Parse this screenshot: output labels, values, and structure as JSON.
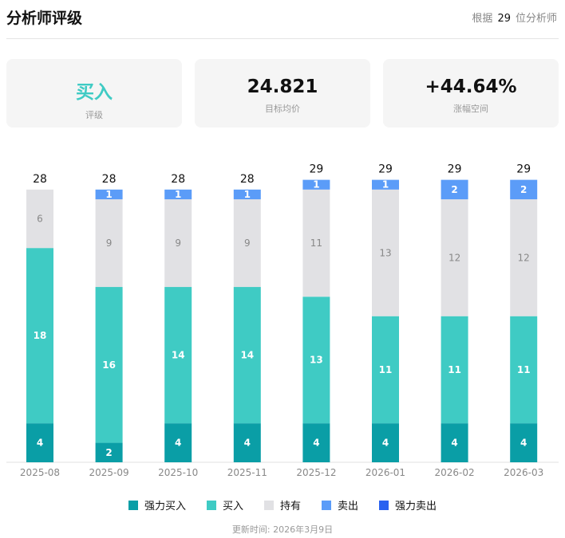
{
  "header": {
    "title": "分析师评级",
    "basis_prefix": "根据",
    "analyst_count": "29",
    "basis_suffix": "位分析师"
  },
  "cards": [
    {
      "value": "买入",
      "label": "评级",
      "color": "#3fcbc4"
    },
    {
      "value": "24.821",
      "label": "目标均价"
    },
    {
      "value": "+44.64%",
      "label": "涨幅空间"
    }
  ],
  "chart_data": {
    "type": "bar",
    "stacked": true,
    "categories": [
      "2025-08",
      "2025-09",
      "2025-10",
      "2025-11",
      "2025-12",
      "2026-01",
      "2026-02",
      "2026-03"
    ],
    "series": [
      {
        "name": "强力买入",
        "color": "#0a9ea6",
        "values": [
          4,
          2,
          4,
          4,
          4,
          4,
          4,
          4
        ]
      },
      {
        "name": "买入",
        "color": "#3fcbc4",
        "values": [
          18,
          16,
          14,
          14,
          13,
          11,
          11,
          11
        ]
      },
      {
        "name": "持有",
        "color": "#e1e1e4",
        "values": [
          6,
          9,
          9,
          9,
          11,
          13,
          12,
          12
        ]
      },
      {
        "name": "卖出",
        "color": "#5b9cf8",
        "values": [
          0,
          1,
          1,
          1,
          1,
          1,
          2,
          2
        ]
      },
      {
        "name": "强力卖出",
        "color": "#2a62f0",
        "values": [
          0,
          0,
          0,
          0,
          0,
          0,
          0,
          0
        ]
      }
    ],
    "totals": [
      28,
      28,
      28,
      28,
      29,
      29,
      29,
      29
    ],
    "legend": "bottom",
    "grid": false
  },
  "footer": {
    "updated": "更新时间: 2026年3月9日"
  }
}
